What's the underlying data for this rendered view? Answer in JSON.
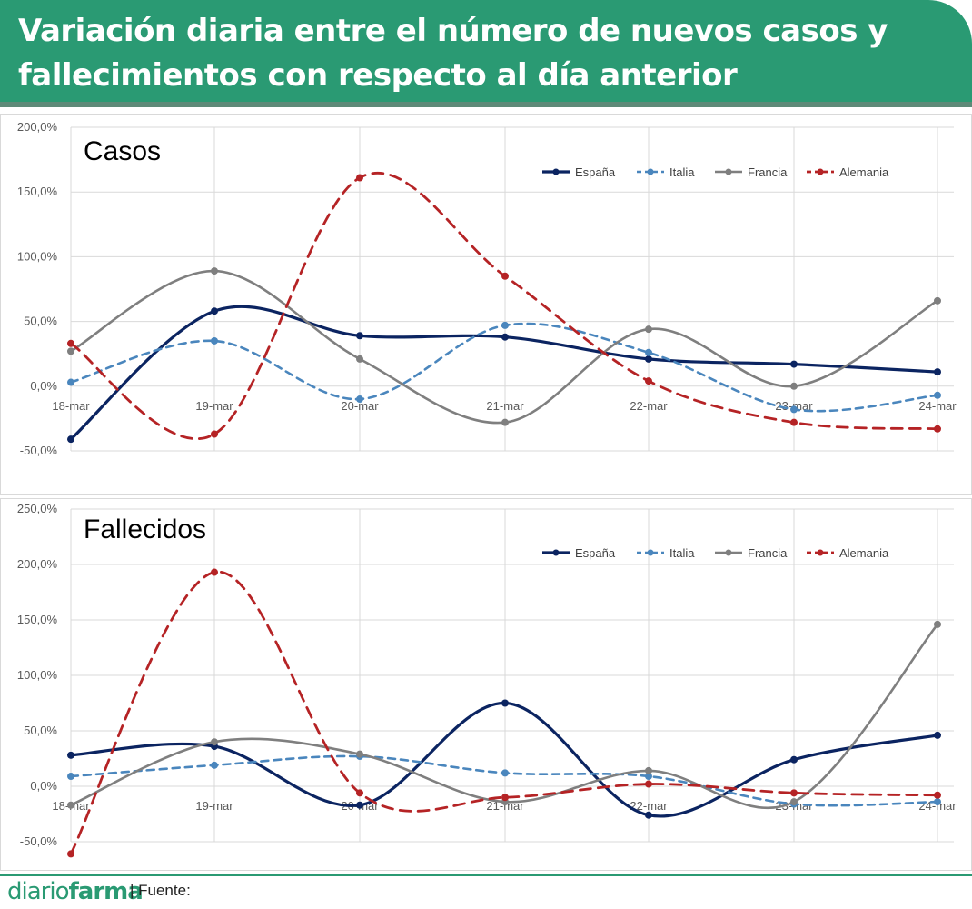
{
  "header": {
    "title": "Variación diaria entre el número de nuevos casos y fallecimientos con respecto al día anterior"
  },
  "footer": {
    "brand_a": "diario",
    "brand_b": "farma",
    "source": "| Fuente:"
  },
  "colors": {
    "header_bg": "#2a9a73",
    "espana": "#0b2461",
    "italia": "#4a86bd",
    "francia": "#7f7f7f",
    "alemania": "#b52325"
  },
  "chart_data": [
    {
      "type": "line",
      "title": "Casos",
      "categories": [
        "18-mar",
        "19-mar",
        "20-mar",
        "21-mar",
        "22-mar",
        "23-mar",
        "24-mar"
      ],
      "ylim": [
        -50,
        200
      ],
      "yticks": [
        -50,
        0,
        50,
        100,
        150,
        200
      ],
      "ytick_labels": [
        "-50,0%",
        "0,0%",
        "50,0%",
        "100,0%",
        "150,0%",
        "200,0%"
      ],
      "grid": true,
      "legend": "top-right",
      "series": [
        {
          "name": "España",
          "values": [
            -41,
            58,
            39,
            38,
            21,
            17,
            11
          ]
        },
        {
          "name": "Italia",
          "values": [
            3,
            35,
            -10,
            47,
            26,
            -18,
            -7
          ]
        },
        {
          "name": "Francia",
          "values": [
            27,
            89,
            21,
            -28,
            44,
            0,
            66
          ]
        },
        {
          "name": "Alemania",
          "values": [
            33,
            -37,
            161,
            85,
            4,
            -28,
            -33
          ]
        }
      ]
    },
    {
      "type": "line",
      "title": "Fallecidos",
      "categories": [
        "18-mar",
        "19-mar",
        "20-mar",
        "21-mar",
        "22-mar",
        "23-mar",
        "24-mar"
      ],
      "ylim": [
        -50,
        250
      ],
      "yticks": [
        -50,
        0,
        50,
        100,
        150,
        200,
        250
      ],
      "ytick_labels": [
        "-50,0%",
        "0,0%",
        "50,0%",
        "100,0%",
        "150,0%",
        "200,0%",
        "250,0%"
      ],
      "grid": true,
      "legend": "top-right",
      "series": [
        {
          "name": "España",
          "values": [
            28,
            36,
            -17,
            75,
            -26,
            24,
            46
          ]
        },
        {
          "name": "Italia",
          "values": [
            9,
            19,
            27,
            12,
            9,
            -16,
            -14
          ]
        },
        {
          "name": "Francia",
          "values": [
            -17,
            40,
            29,
            -14,
            14,
            -14,
            146
          ]
        },
        {
          "name": "Alemania",
          "values": [
            -61,
            193,
            -6,
            -10,
            2,
            -6,
            -8
          ]
        }
      ]
    }
  ]
}
